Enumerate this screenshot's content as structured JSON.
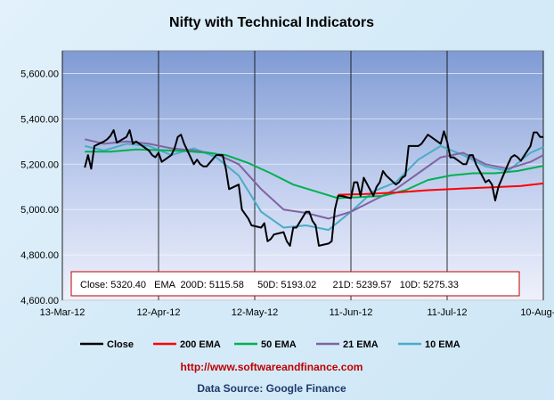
{
  "chart_data": {
    "type": "line",
    "title": "Nifty with Technical Indicators",
    "ylim": [
      4600,
      5700
    ],
    "yticks": [
      "4,600.00",
      "4,800.00",
      "5,000.00",
      "5,200.00",
      "5,400.00",
      "5,600.00"
    ],
    "ytick_values": [
      4600,
      4800,
      5000,
      5200,
      5400,
      5600
    ],
    "xlim": [
      "2012-03-13",
      "2012-08-10"
    ],
    "xticks": [
      "13-Mar-12",
      "12-Apr-12",
      "12-May-12",
      "11-Jun-12",
      "11-Jul-12",
      "10-Aug-12"
    ],
    "xtick_dates": [
      "2012-03-13",
      "2012-04-12",
      "2012-05-12",
      "2012-06-11",
      "2012-07-11",
      "2012-08-10"
    ],
    "grid": "horizontal",
    "legend_position": "bottom",
    "series": [
      {
        "name": "Close",
        "color": "#000000",
        "points": [
          [
            "2012-03-20",
            5185
          ],
          [
            "2012-03-21",
            5240
          ],
          [
            "2012-03-22",
            5180
          ],
          [
            "2012-03-23",
            5280
          ],
          [
            "2012-03-26",
            5300
          ],
          [
            "2012-03-27",
            5310
          ],
          [
            "2012-03-28",
            5325
          ],
          [
            "2012-03-29",
            5350
          ],
          [
            "2012-03-30",
            5295
          ],
          [
            "2012-04-02",
            5320
          ],
          [
            "2012-04-03",
            5350
          ],
          [
            "2012-04-04",
            5290
          ],
          [
            "2012-04-05",
            5300
          ],
          [
            "2012-04-09",
            5260
          ],
          [
            "2012-04-10",
            5240
          ],
          [
            "2012-04-11",
            5230
          ],
          [
            "2012-04-12",
            5250
          ],
          [
            "2012-04-13",
            5210
          ],
          [
            "2012-04-16",
            5240
          ],
          [
            "2012-04-17",
            5270
          ],
          [
            "2012-04-18",
            5320
          ],
          [
            "2012-04-19",
            5330
          ],
          [
            "2012-04-20",
            5290
          ],
          [
            "2012-04-23",
            5200
          ],
          [
            "2012-04-24",
            5220
          ],
          [
            "2012-04-25",
            5200
          ],
          [
            "2012-04-26",
            5190
          ],
          [
            "2012-04-27",
            5190
          ],
          [
            "2012-04-30",
            5240
          ],
          [
            "2012-05-02",
            5240
          ],
          [
            "2012-05-03",
            5180
          ],
          [
            "2012-05-04",
            5090
          ],
          [
            "2012-05-07",
            5110
          ],
          [
            "2012-05-08",
            5000
          ],
          [
            "2012-05-09",
            4980
          ],
          [
            "2012-05-10",
            4960
          ],
          [
            "2012-05-11",
            4930
          ],
          [
            "2012-05-14",
            4920
          ],
          [
            "2012-05-15",
            4940
          ],
          [
            "2012-05-16",
            4860
          ],
          [
            "2012-05-17",
            4870
          ],
          [
            "2012-05-18",
            4890
          ],
          [
            "2012-05-21",
            4900
          ],
          [
            "2012-05-22",
            4860
          ],
          [
            "2012-05-23",
            4840
          ],
          [
            "2012-05-24",
            4920
          ],
          [
            "2012-05-25",
            4920
          ],
          [
            "2012-05-28",
            4990
          ],
          [
            "2012-05-29",
            4990
          ],
          [
            "2012-05-30",
            4950
          ],
          [
            "2012-05-31",
            4930
          ],
          [
            "2012-06-01",
            4840
          ],
          [
            "2012-06-04",
            4850
          ],
          [
            "2012-06-05",
            4860
          ],
          [
            "2012-06-06",
            5000
          ],
          [
            "2012-06-07",
            5060
          ],
          [
            "2012-06-08",
            5060
          ],
          [
            "2012-06-11",
            5050
          ],
          [
            "2012-06-12",
            5120
          ],
          [
            "2012-06-13",
            5120
          ],
          [
            "2012-06-14",
            5060
          ],
          [
            "2012-06-15",
            5140
          ],
          [
            "2012-06-18",
            5060
          ],
          [
            "2012-06-19",
            5100
          ],
          [
            "2012-06-20",
            5120
          ],
          [
            "2012-06-21",
            5170
          ],
          [
            "2012-06-22",
            5150
          ],
          [
            "2012-06-25",
            5110
          ],
          [
            "2012-06-26",
            5120
          ],
          [
            "2012-06-27",
            5140
          ],
          [
            "2012-06-28",
            5150
          ],
          [
            "2012-06-29",
            5280
          ],
          [
            "2012-07-02",
            5280
          ],
          [
            "2012-07-03",
            5290
          ],
          [
            "2012-07-04",
            5310
          ],
          [
            "2012-07-05",
            5330
          ],
          [
            "2012-07-06",
            5320
          ],
          [
            "2012-07-09",
            5290
          ],
          [
            "2012-07-10",
            5345
          ],
          [
            "2012-07-11",
            5300
          ],
          [
            "2012-07-12",
            5230
          ],
          [
            "2012-07-13",
            5230
          ],
          [
            "2012-07-16",
            5200
          ],
          [
            "2012-07-17",
            5200
          ],
          [
            "2012-07-18",
            5240
          ],
          [
            "2012-07-19",
            5240
          ],
          [
            "2012-07-20",
            5200
          ],
          [
            "2012-07-23",
            5120
          ],
          [
            "2012-07-24",
            5130
          ],
          [
            "2012-07-25",
            5110
          ],
          [
            "2012-07-26",
            5040
          ],
          [
            "2012-07-27",
            5100
          ],
          [
            "2012-07-30",
            5200
          ],
          [
            "2012-07-31",
            5230
          ],
          [
            "2012-08-01",
            5240
          ],
          [
            "2012-08-02",
            5230
          ],
          [
            "2012-08-03",
            5215
          ],
          [
            "2012-08-06",
            5280
          ],
          [
            "2012-08-07",
            5340
          ],
          [
            "2012-08-08",
            5340
          ],
          [
            "2012-08-09",
            5320
          ],
          [
            "2012-08-10",
            5320
          ]
        ]
      },
      {
        "name": "200 EMA",
        "color": "#ff0000",
        "points": [
          [
            "2012-06-07",
            5065
          ],
          [
            "2012-06-15",
            5068
          ],
          [
            "2012-06-25",
            5075
          ],
          [
            "2012-07-05",
            5085
          ],
          [
            "2012-07-15",
            5092
          ],
          [
            "2012-07-25",
            5098
          ],
          [
            "2012-08-03",
            5104
          ],
          [
            "2012-08-10",
            5115
          ]
        ]
      },
      {
        "name": "50 EMA",
        "color": "#00b050",
        "points": [
          [
            "2012-03-20",
            5255
          ],
          [
            "2012-03-28",
            5255
          ],
          [
            "2012-04-05",
            5265
          ],
          [
            "2012-04-12",
            5262
          ],
          [
            "2012-04-20",
            5258
          ],
          [
            "2012-04-27",
            5250
          ],
          [
            "2012-05-03",
            5240
          ],
          [
            "2012-05-10",
            5205
          ],
          [
            "2012-05-17",
            5160
          ],
          [
            "2012-05-24",
            5110
          ],
          [
            "2012-05-31",
            5080
          ],
          [
            "2012-06-07",
            5050
          ],
          [
            "2012-06-14",
            5055
          ],
          [
            "2012-06-21",
            5060
          ],
          [
            "2012-06-28",
            5085
          ],
          [
            "2012-07-05",
            5130
          ],
          [
            "2012-07-12",
            5150
          ],
          [
            "2012-07-19",
            5160
          ],
          [
            "2012-07-26",
            5160
          ],
          [
            "2012-08-02",
            5170
          ],
          [
            "2012-08-10",
            5193
          ]
        ]
      },
      {
        "name": "21 EMA",
        "color": "#8064a2",
        "points": [
          [
            "2012-03-20",
            5310
          ],
          [
            "2012-03-26",
            5290
          ],
          [
            "2012-04-02",
            5300
          ],
          [
            "2012-04-09",
            5290
          ],
          [
            "2012-04-16",
            5270
          ],
          [
            "2012-04-23",
            5260
          ],
          [
            "2012-04-30",
            5245
          ],
          [
            "2012-05-07",
            5200
          ],
          [
            "2012-05-14",
            5090
          ],
          [
            "2012-05-21",
            5000
          ],
          [
            "2012-05-28",
            4985
          ],
          [
            "2012-06-04",
            4960
          ],
          [
            "2012-06-11",
            4990
          ],
          [
            "2012-06-18",
            5040
          ],
          [
            "2012-06-25",
            5090
          ],
          [
            "2012-07-02",
            5160
          ],
          [
            "2012-07-09",
            5230
          ],
          [
            "2012-07-16",
            5250
          ],
          [
            "2012-07-23",
            5200
          ],
          [
            "2012-07-30",
            5180
          ],
          [
            "2012-08-06",
            5210
          ],
          [
            "2012-08-10",
            5240
          ]
        ]
      },
      {
        "name": "10 EMA",
        "color": "#4bacc6",
        "points": [
          [
            "2012-03-20",
            5280
          ],
          [
            "2012-03-26",
            5260
          ],
          [
            "2012-04-02",
            5290
          ],
          [
            "2012-04-09",
            5280
          ],
          [
            "2012-04-16",
            5240
          ],
          [
            "2012-04-23",
            5270
          ],
          [
            "2012-04-30",
            5230
          ],
          [
            "2012-05-07",
            5150
          ],
          [
            "2012-05-14",
            4990
          ],
          [
            "2012-05-21",
            4920
          ],
          [
            "2012-05-28",
            4930
          ],
          [
            "2012-06-04",
            4910
          ],
          [
            "2012-06-11",
            4990
          ],
          [
            "2012-06-18",
            5080
          ],
          [
            "2012-06-25",
            5120
          ],
          [
            "2012-07-02",
            5220
          ],
          [
            "2012-07-09",
            5280
          ],
          [
            "2012-07-16",
            5240
          ],
          [
            "2012-07-23",
            5190
          ],
          [
            "2012-07-30",
            5170
          ],
          [
            "2012-08-06",
            5250
          ],
          [
            "2012-08-10",
            5275
          ]
        ]
      }
    ],
    "annotation": "Close: 5320.40   EMA  200D: 5115.58     50D: 5193.02      21D: 5239.57   10D: 5275.33"
  },
  "footer": {
    "url": "http://www.softwareandfinance.com",
    "source": "Data Source: Google Finance"
  }
}
